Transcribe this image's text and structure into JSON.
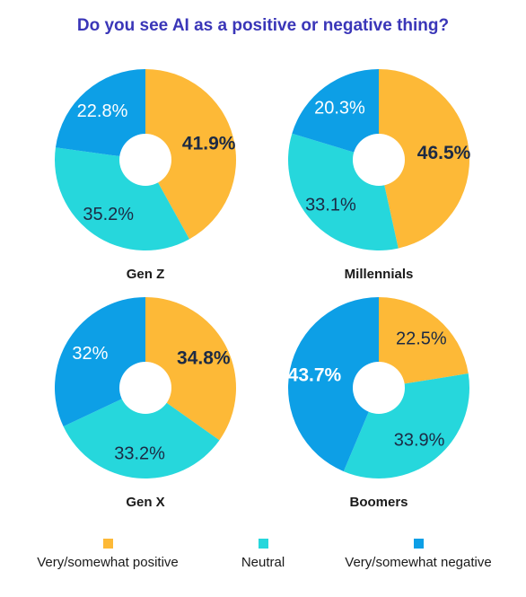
{
  "title": "Do you see AI as a positive or negative thing?",
  "colors": {
    "positive": "#fdb937",
    "neutral": "#26d7dc",
    "negative": "#0d9fe6"
  },
  "legend": [
    {
      "label": "Very/somewhat positive",
      "color": "#fdb937"
    },
    {
      "label": "Neutral",
      "color": "#26d7dc"
    },
    {
      "label": "Very/somewhat negative",
      "color": "#0d9fe6"
    }
  ],
  "chart_data": [
    {
      "type": "pie",
      "title": "Gen Z",
      "categories": [
        "Very/somewhat positive",
        "Neutral",
        "Very/somewhat negative"
      ],
      "values": [
        41.9,
        35.2,
        22.8
      ],
      "labels": [
        "41.9%",
        "35.2%",
        "22.8%"
      ]
    },
    {
      "type": "pie",
      "title": "Millennials",
      "categories": [
        "Very/somewhat positive",
        "Neutral",
        "Very/somewhat negative"
      ],
      "values": [
        46.5,
        33.1,
        20.3
      ],
      "labels": [
        "46.5%",
        "33.1%",
        "20.3%"
      ]
    },
    {
      "type": "pie",
      "title": "Gen X",
      "categories": [
        "Very/somewhat positive",
        "Neutral",
        "Very/somewhat negative"
      ],
      "values": [
        34.8,
        33.2,
        32
      ],
      "labels": [
        "34.8%",
        "33.2%",
        "32%"
      ]
    },
    {
      "type": "pie",
      "title": "Boomers",
      "categories": [
        "Very/somewhat positive",
        "Neutral",
        "Very/somewhat negative"
      ],
      "values": [
        22.5,
        33.9,
        43.7
      ],
      "labels": [
        "22.5%",
        "33.9%",
        "43.7%"
      ]
    }
  ]
}
